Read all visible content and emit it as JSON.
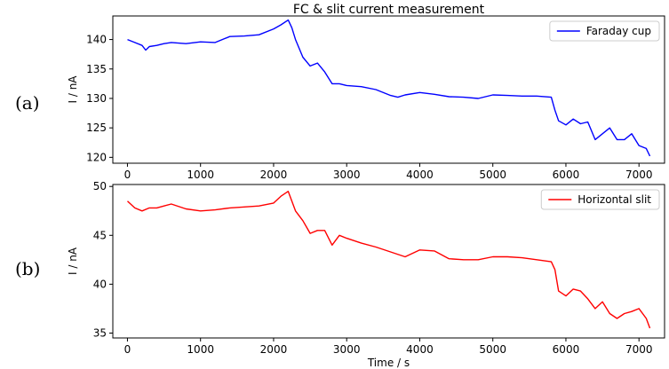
{
  "figure": {
    "title": "FC & slit current measurement"
  },
  "chart_data": [
    {
      "type": "line",
      "panel_label": "(a)",
      "xlabel": "",
      "ylabel": "I / nA",
      "xlim": [
        -200,
        7350
      ],
      "ylim": [
        119,
        144
      ],
      "xticks": [
        0,
        1000,
        2000,
        3000,
        4000,
        5000,
        6000,
        7000
      ],
      "yticks": [
        120,
        125,
        130,
        135,
        140
      ],
      "legend_position": "top-right",
      "grid": false,
      "series": [
        {
          "name": "Faraday cup",
          "color": "#0000ff",
          "x": [
            0,
            100,
            200,
            250,
            300,
            400,
            500,
            600,
            800,
            1000,
            1200,
            1400,
            1600,
            1800,
            2000,
            2100,
            2200,
            2250,
            2300,
            2400,
            2500,
            2600,
            2700,
            2800,
            2900,
            3000,
            3200,
            3400,
            3600,
            3700,
            3800,
            4000,
            4200,
            4400,
            4600,
            4800,
            5000,
            5200,
            5400,
            5600,
            5800,
            5850,
            5900,
            6000,
            6100,
            6200,
            6300,
            6400,
            6500,
            6600,
            6700,
            6800,
            6900,
            7000,
            7100,
            7150
          ],
          "y": [
            140,
            139.5,
            139,
            138.2,
            138.8,
            139,
            139.3,
            139.5,
            139.3,
            139.6,
            139.5,
            140.5,
            140.6,
            140.8,
            141.8,
            142.5,
            143.3,
            142,
            140,
            137,
            135.5,
            136,
            134.5,
            132.5,
            132.5,
            132.2,
            132,
            131.5,
            130.5,
            130.2,
            130.6,
            131,
            130.7,
            130.3,
            130.2,
            130,
            130.6,
            130.5,
            130.4,
            130.4,
            130.2,
            128,
            126.2,
            125.5,
            126.5,
            125.7,
            126,
            123,
            124,
            125,
            123,
            123,
            124,
            122,
            121.5,
            120.2
          ]
        }
      ]
    },
    {
      "type": "line",
      "panel_label": "(b)",
      "xlabel": "Time / s",
      "ylabel": "I / nA",
      "xlim": [
        -200,
        7350
      ],
      "ylim": [
        34.5,
        50.2
      ],
      "xticks": [
        0,
        1000,
        2000,
        3000,
        4000,
        5000,
        6000,
        7000
      ],
      "yticks": [
        35,
        40,
        45,
        50
      ],
      "legend_position": "top-right",
      "grid": false,
      "series": [
        {
          "name": "Horizontal slit",
          "color": "#ff0000",
          "x": [
            0,
            100,
            200,
            300,
            400,
            500,
            600,
            800,
            1000,
            1200,
            1400,
            1600,
            1800,
            2000,
            2100,
            2200,
            2250,
            2300,
            2400,
            2500,
            2600,
            2700,
            2800,
            2900,
            3000,
            3200,
            3400,
            3600,
            3800,
            4000,
            4200,
            4400,
            4600,
            4800,
            5000,
            5200,
            5400,
            5600,
            5800,
            5850,
            5900,
            6000,
            6100,
            6200,
            6300,
            6400,
            6500,
            6600,
            6700,
            6800,
            6900,
            7000,
            7100,
            7150
          ],
          "y": [
            48.5,
            47.8,
            47.5,
            47.8,
            47.8,
            48,
            48.2,
            47.7,
            47.5,
            47.6,
            47.8,
            47.9,
            48,
            48.3,
            49,
            49.5,
            48.5,
            47.5,
            46.5,
            45.2,
            45.5,
            45.5,
            44,
            45,
            44.7,
            44.2,
            43.8,
            43.3,
            42.8,
            43.5,
            43.4,
            42.6,
            42.5,
            42.5,
            42.8,
            42.8,
            42.7,
            42.5,
            42.3,
            41.5,
            39.3,
            38.8,
            39.5,
            39.3,
            38.5,
            37.5,
            38.2,
            37,
            36.5,
            37,
            37.2,
            37.5,
            36.5,
            35.5
          ]
        }
      ]
    }
  ]
}
